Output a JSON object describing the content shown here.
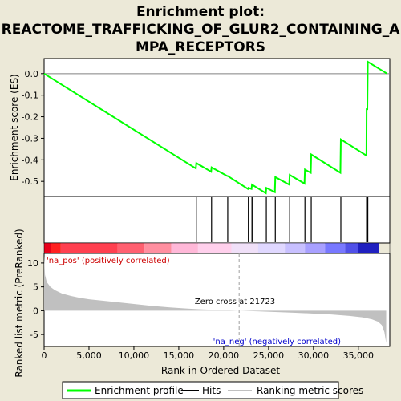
{
  "chart_data": {
    "type": "line",
    "title_lines": [
      "Enrichment plot:",
      "REACTOME_TRAFFICKING_OF_GLUR2_CONTAINING_A",
      "MPA_RECEPTORS"
    ],
    "es_panel": {
      "ylabel": "Enrichment score (ES)",
      "ylim": [
        -0.57,
        0.07
      ],
      "yticks": [
        "0.0",
        "-0.1",
        "-0.2",
        "-0.3",
        "-0.4",
        "-0.5"
      ],
      "ytick_values": [
        0.0,
        -0.1,
        -0.2,
        -0.3,
        -0.4,
        -0.5
      ],
      "series": [
        {
          "name": "Enrichment profile",
          "color": "#00ff00",
          "x": [
            0,
            16900,
            16950,
            18600,
            18650,
            20400,
            20450,
            22700,
            22750,
            23100,
            23150,
            24700,
            24750,
            25700,
            25750,
            27300,
            27350,
            29000,
            29050,
            29700,
            29750,
            33000,
            33050,
            35900,
            35920,
            36000,
            36050,
            38200
          ],
          "y": [
            0.0,
            -0.44,
            -0.415,
            -0.455,
            -0.435,
            -0.475,
            -0.475,
            -0.535,
            -0.53,
            -0.535,
            -0.515,
            -0.555,
            -0.53,
            -0.55,
            -0.48,
            -0.515,
            -0.47,
            -0.51,
            -0.445,
            -0.46,
            -0.375,
            -0.46,
            -0.305,
            -0.38,
            -0.165,
            -0.165,
            0.055,
            0.0
          ]
        }
      ]
    },
    "hits": {
      "name": "Hits",
      "positions": [
        16950,
        18650,
        20450,
        22750,
        23150,
        23250,
        24750,
        25750,
        27350,
        29050,
        29750,
        33050,
        35920,
        36050
      ]
    },
    "metric_panel": {
      "ylabel": "Ranked list metric (PreRanked)",
      "xlabel": "Rank in Ordered Dataset",
      "ylim": [
        -7.5,
        12
      ],
      "yticks": [
        "10",
        "5",
        "0",
        "-5"
      ],
      "ytick_values": [
        10,
        5,
        0,
        -5
      ],
      "xlim": [
        0,
        38500
      ],
      "xticks": [
        "0",
        "5,000",
        "10,000",
        "15,000",
        "20,000",
        "25,000",
        "30,000",
        "35,000"
      ],
      "xtick_values": [
        0,
        5000,
        10000,
        15000,
        20000,
        25000,
        30000,
        35000
      ],
      "series": [
        {
          "name": "Ranking metric scores",
          "x": [
            0,
            100,
            300,
            700,
            1200,
            2000,
            3000,
            4000,
            5000,
            6500,
            8000,
            10000,
            12000,
            14000,
            16000,
            18000,
            20000,
            21723,
            24000,
            26000,
            28000,
            30000,
            32000,
            34000,
            35500,
            36500,
            37200,
            37600,
            37900,
            38100
          ],
          "y": [
            11.5,
            7.5,
            6.0,
            5.0,
            4.3,
            3.6,
            3.1,
            2.7,
            2.4,
            2.1,
            1.8,
            1.4,
            1.0,
            0.7,
            0.45,
            0.25,
            0.1,
            0.0,
            -0.15,
            -0.3,
            -0.45,
            -0.6,
            -0.8,
            -1.1,
            -1.4,
            -1.8,
            -2.3,
            -3.0,
            -4.5,
            -6.8
          ]
        }
      ],
      "annotations": {
        "pos_label": "'na_pos' (positively correlated)",
        "neg_label": "'na_neg' (negatively correlated)",
        "zero_cross": "Zero cross at 21723",
        "zero_cross_x": 21723
      }
    },
    "legend": {
      "placement": "bottom",
      "items": [
        {
          "label": "Enrichment profile",
          "color": "#00ff00"
        },
        {
          "label": "Hits",
          "color": "#000000"
        },
        {
          "label": "Ranking metric scores",
          "color": "#c0c0c0"
        }
      ]
    },
    "colors": {
      "background": "#ece9d8",
      "es_line": "#00ff00",
      "metric_fill": "#c0c0c0",
      "pos_label": "#cc0000",
      "neg_label": "#0000cc"
    }
  }
}
